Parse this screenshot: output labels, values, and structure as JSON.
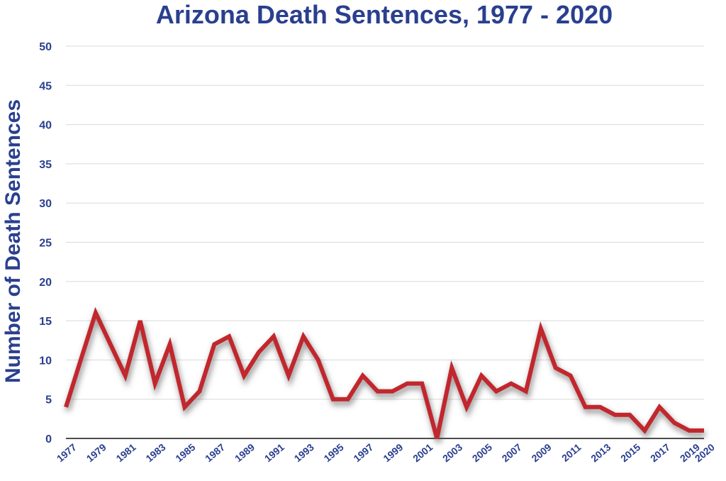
{
  "chart_data": {
    "type": "line",
    "title": "Arizona Death Sentences, 1977 - 2020",
    "ylabel": "Number of Death Sentences",
    "xlabel": "",
    "ylim": [
      0,
      50
    ],
    "yticks": [
      0,
      5,
      10,
      15,
      20,
      25,
      30,
      35,
      40,
      45,
      50
    ],
    "x_tick_labels": [
      "1977",
      "1979",
      "1981",
      "1983",
      "1985",
      "1987",
      "1989",
      "1991",
      "1993",
      "1995",
      "1997",
      "1999",
      "2001",
      "2003",
      "2005",
      "2007",
      "2009",
      "2011",
      "2013",
      "2015",
      "2017",
      "2019",
      "2020"
    ],
    "grid": true,
    "series": [
      {
        "x": [
          1977,
          1978,
          1979,
          1980,
          1981,
          1982,
          1983,
          1984,
          1985,
          1986,
          1987,
          1988,
          1989,
          1990,
          1991,
          1992,
          1993,
          1994,
          1995,
          1996,
          1997,
          1998,
          1999,
          2000,
          2001,
          2002,
          2003,
          2004,
          2005,
          2006,
          2007,
          2008,
          2009,
          2010,
          2011,
          2012,
          2013,
          2014,
          2015,
          2016,
          2017,
          2018,
          2019,
          2020
        ],
        "values": [
          4,
          10,
          16,
          12,
          8,
          15,
          7,
          12,
          4,
          6,
          12,
          13,
          8,
          11,
          13,
          8,
          13,
          10,
          5,
          5,
          8,
          6,
          6,
          7,
          7,
          0,
          9,
          4,
          8,
          6,
          7,
          6,
          14,
          9,
          8,
          4,
          4,
          3,
          3,
          1,
          4,
          2,
          1,
          1
        ]
      }
    ]
  },
  "colors": {
    "line": "#c1272d",
    "text": "#2a3f8f",
    "grid": "#d9d9d9"
  }
}
